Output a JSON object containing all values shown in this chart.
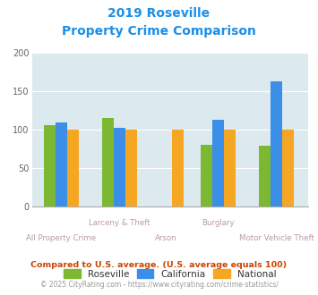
{
  "title_line1": "2019 Roseville",
  "title_line2": "Property Crime Comparison",
  "categories": [
    "All Property Crime",
    "Larceny & Theft",
    "Arson",
    "Burglary",
    "Motor Vehicle Theft"
  ],
  "series": {
    "Roseville": [
      106,
      115,
      null,
      80,
      79
    ],
    "California": [
      110,
      103,
      null,
      113,
      163
    ],
    "National": [
      100,
      100,
      100,
      100,
      100
    ]
  },
  "colors": {
    "Roseville": "#7cb832",
    "California": "#3b8fe8",
    "National": "#f5a623"
  },
  "ylim": [
    0,
    200
  ],
  "yticks": [
    0,
    50,
    100,
    150,
    200
  ],
  "plot_bg": "#dce9ef",
  "title_color": "#1a8fe8",
  "footnote1": "Compared to U.S. average. (U.S. average equals 100)",
  "footnote2": "© 2025 CityRating.com - https://www.cityrating.com/crime-statistics/",
  "footnote1_color": "#cc4400",
  "footnote2_color": "#999999",
  "legend_text_color": "#333333",
  "xlabel_color": "#bb99aa",
  "bar_width": 0.2,
  "group_positions": [
    0.35,
    1.35,
    2.15,
    3.05,
    4.05
  ]
}
